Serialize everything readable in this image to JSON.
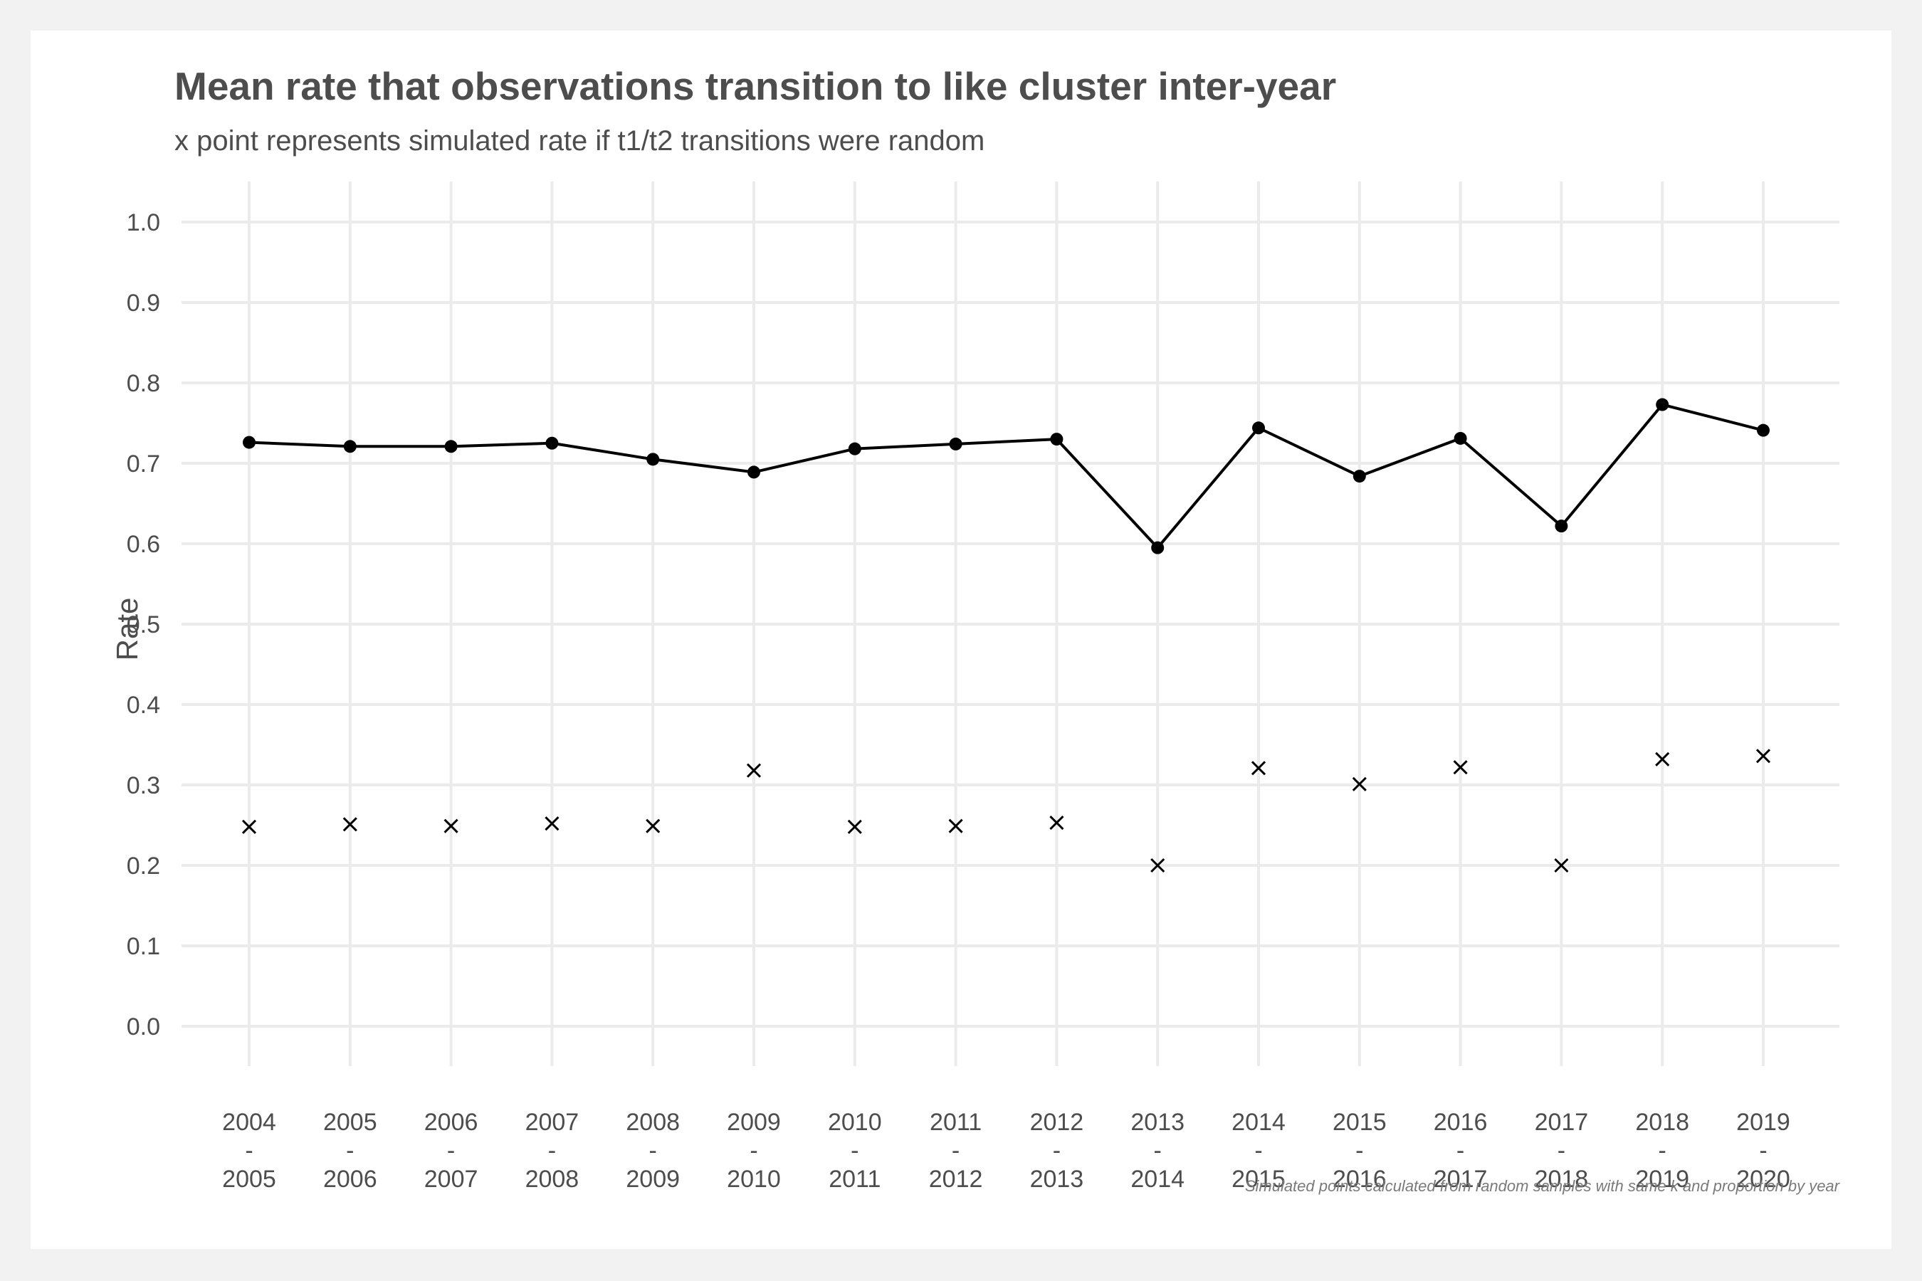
{
  "chart_data": {
    "type": "line",
    "title": "Mean rate that observations transition to like cluster inter-year",
    "subtitle": "x point represents simulated rate if t1/t2 transitions were random",
    "ylabel": "Rate",
    "xlabel": "",
    "caption": "Simulated points calculated from random samples with same k and proportion by year",
    "ylim": [
      0.0,
      1.0
    ],
    "yticks": [
      "0.0",
      "0.1",
      "0.2",
      "0.3",
      "0.4",
      "0.5",
      "0.6",
      "0.7",
      "0.8",
      "0.9",
      "1.0"
    ],
    "grid": true,
    "categories": [
      {
        "start": "2004",
        "sep": "-",
        "end": "2005"
      },
      {
        "start": "2005",
        "sep": "-",
        "end": "2006"
      },
      {
        "start": "2006",
        "sep": "-",
        "end": "2007"
      },
      {
        "start": "2007",
        "sep": "-",
        "end": "2008"
      },
      {
        "start": "2008",
        "sep": "-",
        "end": "2009"
      },
      {
        "start": "2009",
        "sep": "-",
        "end": "2010"
      },
      {
        "start": "2010",
        "sep": "-",
        "end": "2011"
      },
      {
        "start": "2011",
        "sep": "-",
        "end": "2012"
      },
      {
        "start": "2012",
        "sep": "-",
        "end": "2013"
      },
      {
        "start": "2013",
        "sep": "-",
        "end": "2014"
      },
      {
        "start": "2014",
        "sep": "-",
        "end": "2015"
      },
      {
        "start": "2015",
        "sep": "-",
        "end": "2016"
      },
      {
        "start": "2016",
        "sep": "-",
        "end": "2017"
      },
      {
        "start": "2017",
        "sep": "-",
        "end": "2018"
      },
      {
        "start": "2018",
        "sep": "-",
        "end": "2019"
      },
      {
        "start": "2019",
        "sep": "-",
        "end": "2020"
      }
    ],
    "series": [
      {
        "style": "line-with-dots",
        "color": "#000000",
        "values": [
          0.726,
          0.721,
          0.721,
          0.725,
          0.705,
          0.689,
          0.718,
          0.724,
          0.73,
          0.595,
          0.744,
          0.684,
          0.731,
          0.622,
          0.773,
          0.741
        ]
      },
      {
        "style": "x-points",
        "color": "#000000",
        "values": [
          0.248,
          0.251,
          0.249,
          0.252,
          0.249,
          0.318,
          0.248,
          0.249,
          0.253,
          0.2,
          0.321,
          0.301,
          0.322,
          0.2,
          0.332,
          0.336
        ]
      }
    ]
  }
}
